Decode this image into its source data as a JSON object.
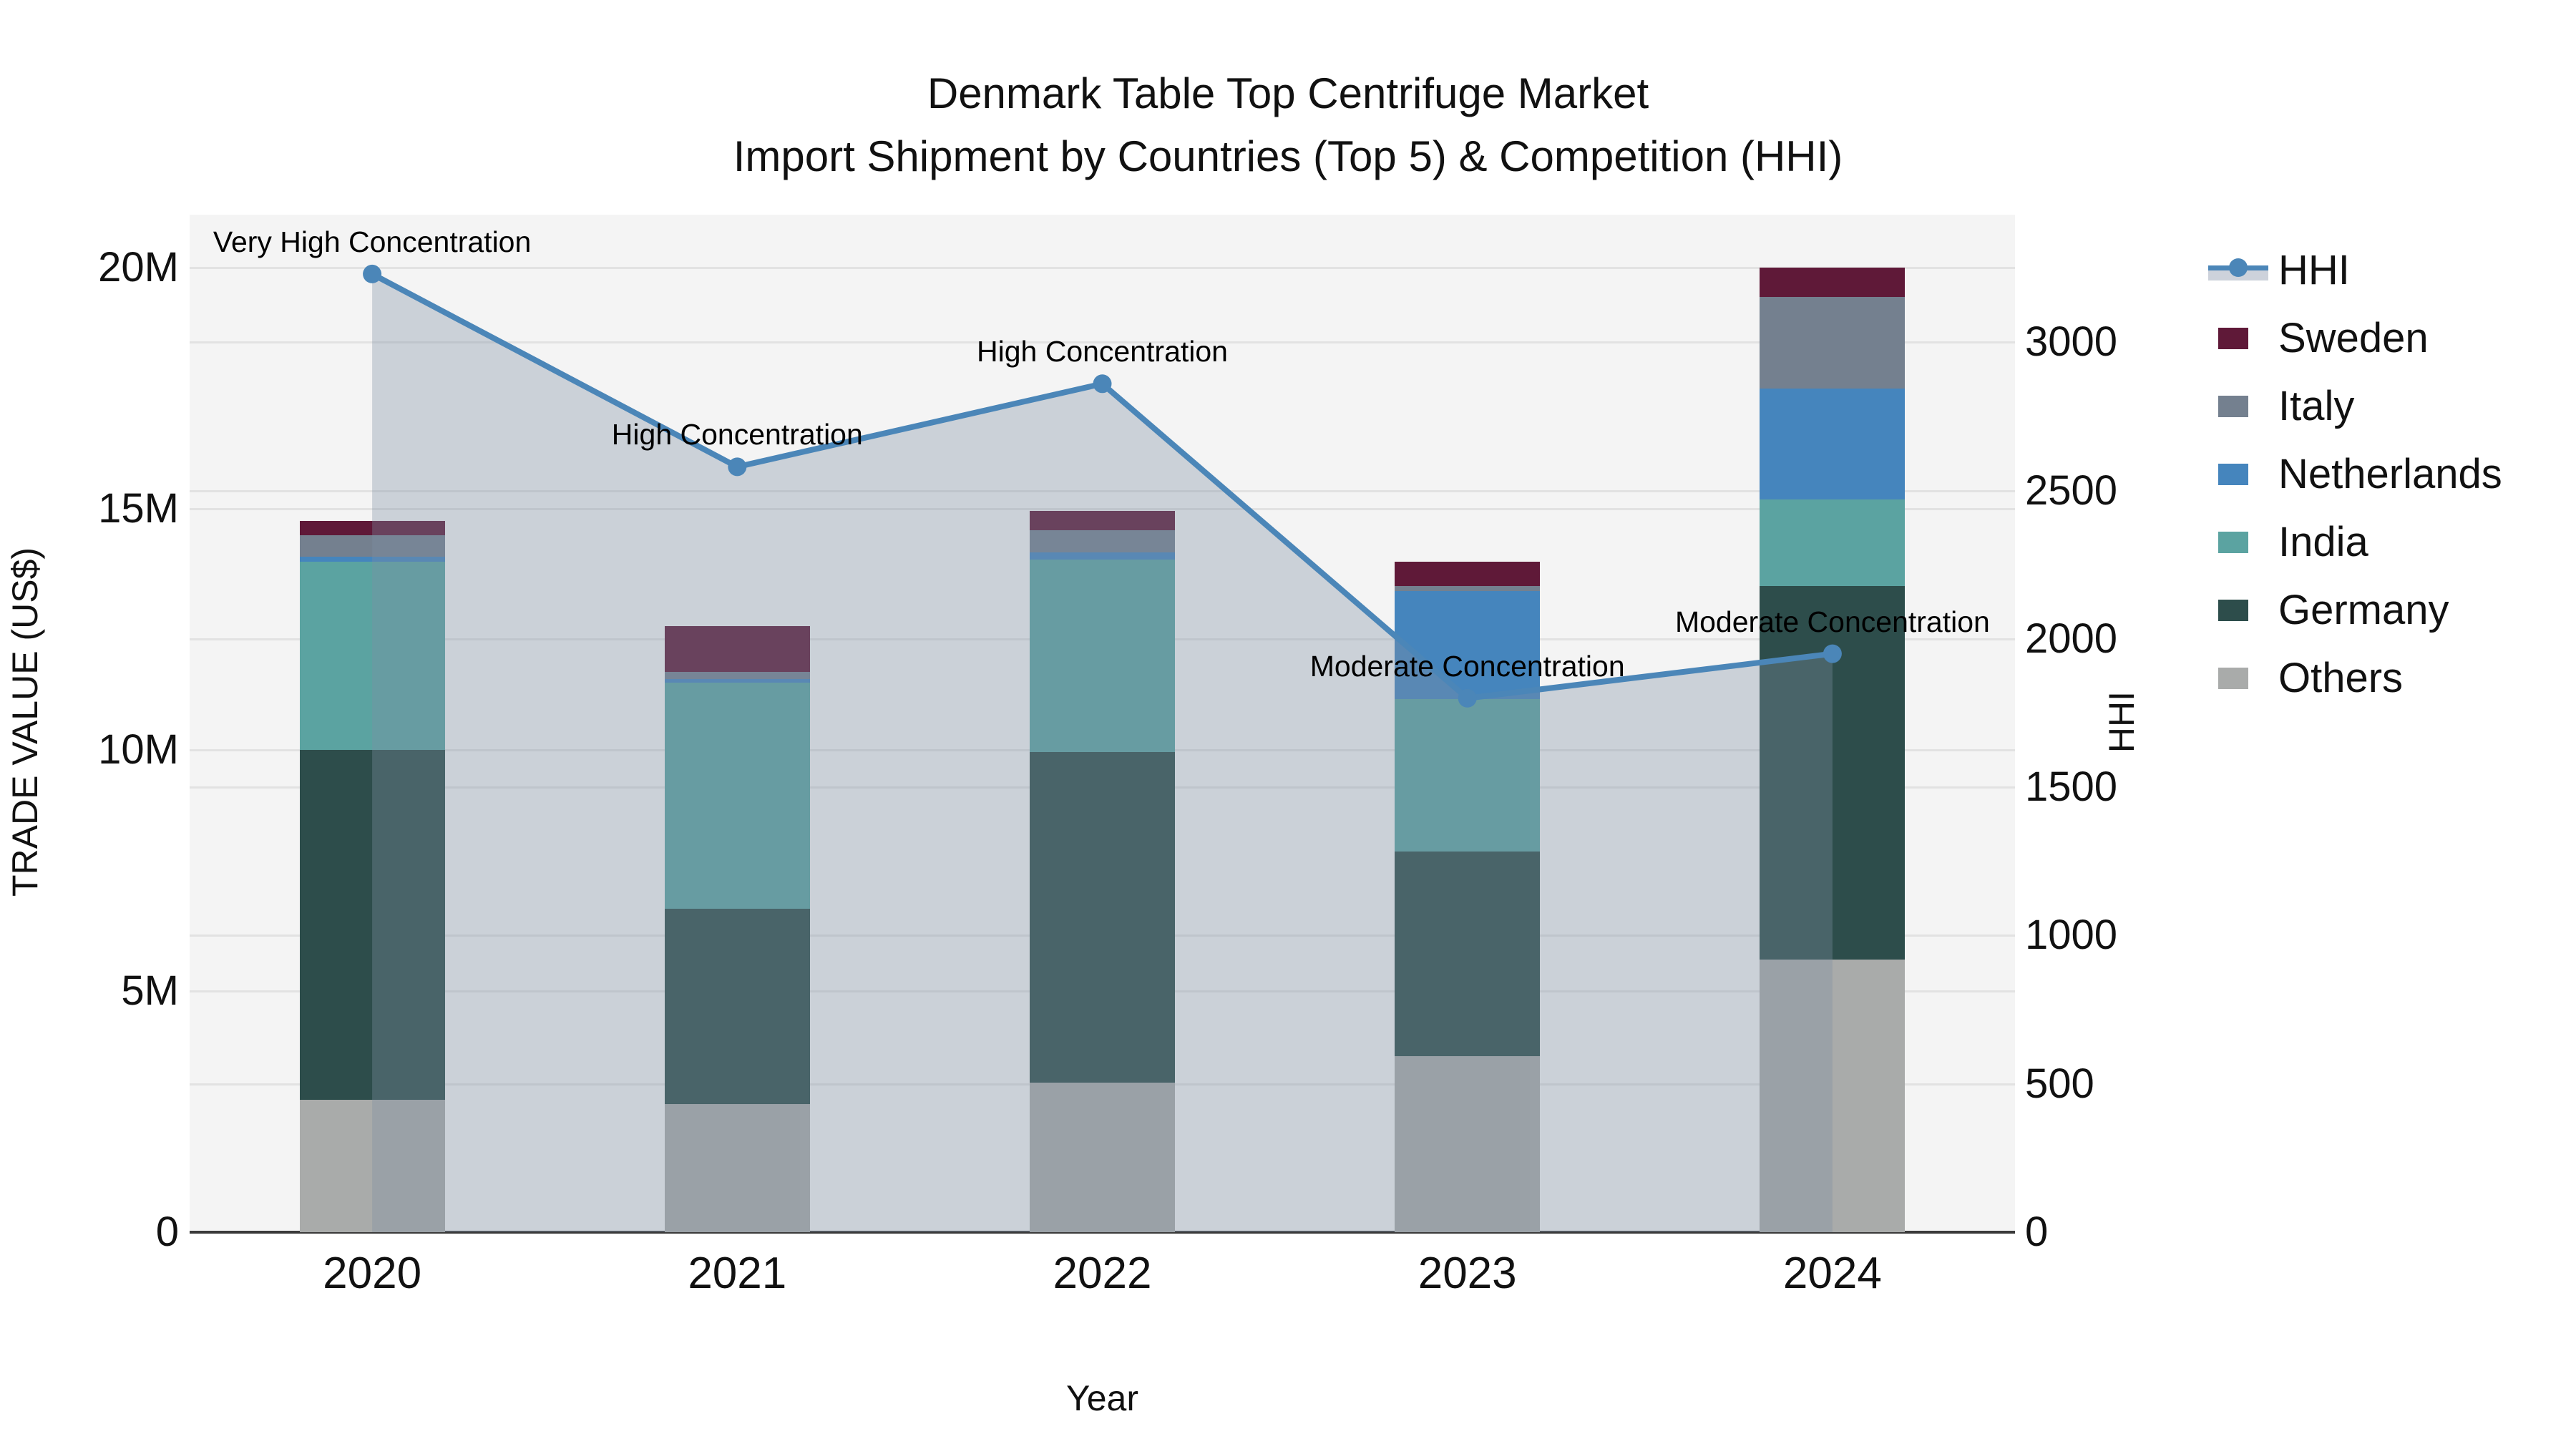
{
  "title": {
    "line1": "Denmark Table Top Centrifuge Market",
    "line2": "Import Shipment by Countries (Top 5) & Competition (HHI)"
  },
  "axes": {
    "x_title": "Year",
    "y_left_title": "TRADE VALUE (US$)",
    "y_right_title": "HHI",
    "y_left_ticks": [
      {
        "label": "0",
        "value": 0
      },
      {
        "label": "5M",
        "value": 5
      },
      {
        "label": "10M",
        "value": 10
      },
      {
        "label": "15M",
        "value": 15
      },
      {
        "label": "20M",
        "value": 20
      }
    ],
    "y_left_max": 21.1,
    "y_right_ticks": [
      {
        "label": "0",
        "value": 0
      },
      {
        "label": "500",
        "value": 500
      },
      {
        "label": "1000",
        "value": 1000
      },
      {
        "label": "1500",
        "value": 1500
      },
      {
        "label": "2000",
        "value": 2000
      },
      {
        "label": "2500",
        "value": 2500
      },
      {
        "label": "3000",
        "value": 3000
      }
    ],
    "y_right_max": 3430
  },
  "colors": {
    "hhi_line": "#4b86b8",
    "hhi_fill": "rgba(127,142,163,0.35)",
    "plot_background": "#f4f4f4",
    "gridline": "#e2e2e2",
    "axis_line": "#3a3a3a"
  },
  "chart_data": {
    "type": "bar+line",
    "categories": [
      "2020",
      "2021",
      "2022",
      "2023",
      "2024"
    ],
    "bar_unit": "M US$",
    "series": [
      {
        "name": "Others",
        "color": "#a9abaa",
        "values": [
          2.75,
          2.65,
          3.1,
          3.65,
          5.65
        ]
      },
      {
        "name": "Germany",
        "color": "#2d4d4b",
        "values": [
          7.25,
          4.05,
          6.85,
          4.25,
          7.75
        ]
      },
      {
        "name": "India",
        "color": "#5ba3a1",
        "values": [
          3.9,
          4.7,
          4.0,
          3.15,
          1.8
        ]
      },
      {
        "name": "Netherlands",
        "color": "#4585bd",
        "values": [
          0.1,
          0.07,
          0.15,
          2.25,
          2.3
        ]
      },
      {
        "name": "Italy",
        "color": "#74808f",
        "values": [
          0.45,
          0.15,
          0.45,
          0.1,
          1.9
        ]
      },
      {
        "name": "Sweden",
        "color": "#5f1938",
        "values": [
          0.3,
          0.95,
          0.4,
          0.5,
          0.6
        ]
      }
    ],
    "bar_totals": [
      14.75,
      12.57,
      14.95,
      13.9,
      20.0
    ],
    "hhi": {
      "name": "HHI",
      "values": [
        3230,
        2580,
        2860,
        1800,
        1950
      ]
    },
    "annotations": [
      {
        "year": "2020",
        "text": "Very High Concentration"
      },
      {
        "year": "2021",
        "text": "High Concentration"
      },
      {
        "year": "2022",
        "text": "High Concentration"
      },
      {
        "year": "2023",
        "text": "Moderate Concentration"
      },
      {
        "year": "2024",
        "text": "Moderate Concentration"
      }
    ],
    "legend_position": "right",
    "grid": true
  },
  "legend": {
    "entries": [
      {
        "label": "HHI",
        "type": "line",
        "color": "#4b86b8"
      },
      {
        "label": "Sweden",
        "type": "swatch",
        "color": "#5f1938"
      },
      {
        "label": "Italy",
        "type": "swatch",
        "color": "#74808f"
      },
      {
        "label": "Netherlands",
        "type": "swatch",
        "color": "#4585bd"
      },
      {
        "label": "India",
        "type": "swatch",
        "color": "#5ba3a1"
      },
      {
        "label": "Germany",
        "type": "swatch",
        "color": "#2d4d4b"
      },
      {
        "label": "Others",
        "type": "swatch",
        "color": "#a9abaa"
      }
    ]
  }
}
